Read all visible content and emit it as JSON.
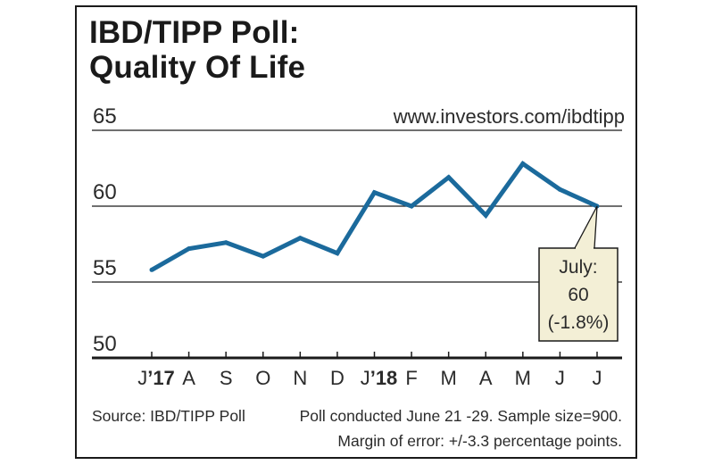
{
  "title": {
    "line1": "IBD/TIPP Poll:",
    "line2": "Quality Of Life"
  },
  "url": "www.investors.com/ibdtipp",
  "source": "Source: IBD/TIPP Poll",
  "notes": [
    "Poll conducted June 21 -29. Sample size=900.",
    "Margin of error: +/-3.3 percentage points."
  ],
  "callout": {
    "lines": [
      "July:",
      "60",
      "(-1.8%)"
    ],
    "month_index": 12
  },
  "colors": {
    "line": "#1b6a9c",
    "callout_bg": "#f3efd6",
    "grid": "#1a1a1a"
  },
  "chart_data": {
    "type": "line",
    "title": "IBD/TIPP Poll: Quality Of Life",
    "xlabel": "",
    "ylabel": "",
    "ylim": [
      50,
      65
    ],
    "yticks": [
      50,
      55,
      60,
      65
    ],
    "categories": [
      {
        "label": "J",
        "year": "’17"
      },
      {
        "label": "A",
        "year": ""
      },
      {
        "label": "S",
        "year": ""
      },
      {
        "label": "O",
        "year": ""
      },
      {
        "label": "N",
        "year": ""
      },
      {
        "label": "D",
        "year": ""
      },
      {
        "label": "J",
        "year": "’18"
      },
      {
        "label": "F",
        "year": ""
      },
      {
        "label": "M",
        "year": ""
      },
      {
        "label": "A",
        "year": ""
      },
      {
        "label": "M",
        "year": ""
      },
      {
        "label": "J",
        "year": ""
      },
      {
        "label": "J",
        "year": ""
      }
    ],
    "series": [
      {
        "values": [
          55.8,
          57.2,
          57.6,
          56.7,
          57.9,
          56.9,
          60.9,
          60.0,
          61.9,
          59.4,
          62.8,
          61.1,
          60.0
        ]
      }
    ],
    "grid": true
  }
}
